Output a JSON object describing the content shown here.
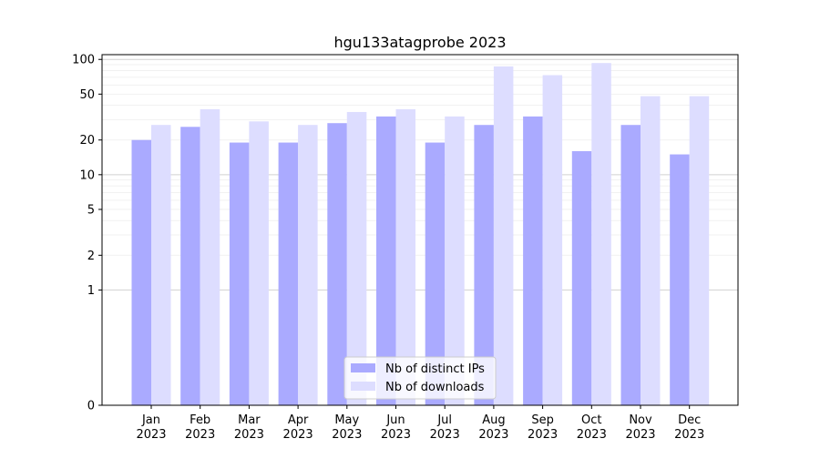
{
  "chart_data": {
    "type": "bar",
    "title": "hgu133atagprobe 2023",
    "xlabel": "",
    "ylabel": "",
    "y_scale": "symlog",
    "ylim": [
      0,
      110
    ],
    "categories": [
      "Jan\n2023",
      "Feb\n2023",
      "Mar\n2023",
      "Apr\n2023",
      "May\n2023",
      "Jun\n2023",
      "Jul\n2023",
      "Aug\n2023",
      "Sep\n2023",
      "Oct\n2023",
      "Nov\n2023",
      "Dec\n2023"
    ],
    "y_ticks": [
      {
        "value": 0,
        "label": "0"
      },
      {
        "value": 1,
        "label": "1"
      },
      {
        "value": 2,
        "label": "2"
      },
      {
        "value": 5,
        "label": "5"
      },
      {
        "value": 10,
        "label": "10"
      },
      {
        "value": 20,
        "label": "20"
      },
      {
        "value": 50,
        "label": "50"
      },
      {
        "value": 100,
        "label": "100"
      }
    ],
    "series": [
      {
        "name": "Nb of distinct IPs",
        "color": "#aaaaff",
        "values": [
          20,
          26,
          19,
          19,
          28,
          32,
          19,
          27,
          32,
          16,
          27,
          15
        ]
      },
      {
        "name": "Nb of downloads",
        "color": "#ddddff",
        "values": [
          27,
          37,
          29,
          27,
          35,
          37,
          32,
          87,
          73,
          93,
          48,
          48
        ]
      }
    ],
    "grid": true,
    "legend_position": "bottom-center"
  }
}
